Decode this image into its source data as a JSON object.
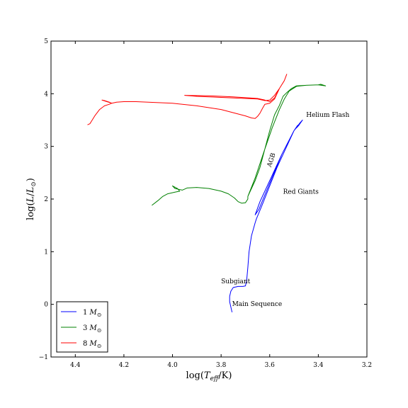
{
  "chart_data": {
    "type": "line",
    "title": "",
    "xlabel": "log(T_eff/K)",
    "ylabel": "log(L/L_⊙)",
    "xlim": [
      4.5,
      3.2
    ],
    "ylim": [
      -1,
      5
    ],
    "x_inverted": true,
    "grid": false,
    "legend_position": "lower-left",
    "xticks": [
      4.4,
      4.2,
      4.0,
      3.8,
      3.6,
      3.4,
      3.2
    ],
    "yticks": [
      -1,
      0,
      1,
      2,
      3,
      4,
      5
    ],
    "xtick_labels": [
      "4.4",
      "4.2",
      "4.0",
      "3.8",
      "3.6",
      "3.4",
      "3.2"
    ],
    "ytick_labels": [
      "−1",
      "0",
      "1",
      "2",
      "3",
      "4",
      "5"
    ],
    "series": [
      {
        "name": "1 M⊙",
        "legend_mass": "1",
        "color": "#0000ff",
        "points": [
          [
            3.755,
            -0.15
          ],
          [
            3.76,
            -0.05
          ],
          [
            3.765,
            0.05
          ],
          [
            3.765,
            0.15
          ],
          [
            3.76,
            0.25
          ],
          [
            3.75,
            0.32
          ],
          [
            3.73,
            0.34
          ],
          [
            3.71,
            0.34
          ],
          [
            3.7,
            0.35
          ],
          [
            3.695,
            0.45
          ],
          [
            3.69,
            0.7
          ],
          [
            3.685,
            1.0
          ],
          [
            3.675,
            1.3
          ],
          [
            3.66,
            1.55
          ],
          [
            3.655,
            1.62
          ],
          [
            3.63,
            1.9
          ],
          [
            3.6,
            2.25
          ],
          [
            3.57,
            2.6
          ],
          [
            3.53,
            3.0
          ],
          [
            3.5,
            3.3
          ],
          [
            3.475,
            3.45
          ],
          [
            3.465,
            3.5
          ],
          [
            3.48,
            3.4
          ],
          [
            3.49,
            3.35
          ],
          [
            3.485,
            3.4
          ],
          [
            3.5,
            3.3
          ],
          [
            3.55,
            2.85
          ],
          [
            3.6,
            2.35
          ],
          [
            3.64,
            1.95
          ],
          [
            3.66,
            1.7
          ],
          [
            3.645,
            1.8
          ],
          [
            3.6,
            2.3
          ],
          [
            3.55,
            2.85
          ],
          [
            3.5,
            3.3
          ],
          [
            3.465,
            3.5
          ]
        ]
      },
      {
        "name": "3 M⊙",
        "legend_mass": "3",
        "color": "#008000",
        "points": [
          [
            4.085,
            1.88
          ],
          [
            4.06,
            1.97
          ],
          [
            4.04,
            2.05
          ],
          [
            4.02,
            2.1
          ],
          [
            3.99,
            2.13
          ],
          [
            3.97,
            2.15
          ],
          [
            3.98,
            2.2
          ],
          [
            4.0,
            2.25
          ],
          [
            3.99,
            2.2
          ],
          [
            3.96,
            2.17
          ],
          [
            3.94,
            2.21
          ],
          [
            3.9,
            2.22
          ],
          [
            3.85,
            2.2
          ],
          [
            3.8,
            2.15
          ],
          [
            3.77,
            2.1
          ],
          [
            3.745,
            2.02
          ],
          [
            3.73,
            1.95
          ],
          [
            3.715,
            1.92
          ],
          [
            3.7,
            1.93
          ],
          [
            3.69,
            2.0
          ],
          [
            3.69,
            2.05
          ],
          [
            3.68,
            2.15
          ],
          [
            3.66,
            2.35
          ],
          [
            3.64,
            2.6
          ],
          [
            3.62,
            2.95
          ],
          [
            3.6,
            3.3
          ],
          [
            3.58,
            3.6
          ],
          [
            3.56,
            3.78
          ],
          [
            3.545,
            3.95
          ],
          [
            3.53,
            4.02
          ],
          [
            3.51,
            4.1
          ],
          [
            3.49,
            4.15
          ],
          [
            3.45,
            4.16
          ],
          [
            3.4,
            4.17
          ],
          [
            3.39,
            4.18
          ],
          [
            3.37,
            4.15
          ],
          [
            3.4,
            4.17
          ],
          [
            3.45,
            4.16
          ],
          [
            3.49,
            4.14
          ],
          [
            3.52,
            4.05
          ],
          [
            3.54,
            3.9
          ],
          [
            3.56,
            3.7
          ],
          [
            3.59,
            3.35
          ],
          [
            3.62,
            2.95
          ],
          [
            3.66,
            2.4
          ],
          [
            3.69,
            2.05
          ]
        ]
      },
      {
        "name": "8 M⊙",
        "legend_mass": "8",
        "color": "#ff0000",
        "points": [
          [
            4.35,
            3.41
          ],
          [
            4.34,
            3.43
          ],
          [
            4.32,
            3.58
          ],
          [
            4.3,
            3.7
          ],
          [
            4.28,
            3.77
          ],
          [
            4.26,
            3.8
          ],
          [
            4.25,
            3.82
          ],
          [
            4.26,
            3.84
          ],
          [
            4.28,
            3.87
          ],
          [
            4.29,
            3.88
          ],
          [
            4.27,
            3.85
          ],
          [
            4.25,
            3.82
          ],
          [
            4.23,
            3.84
          ],
          [
            4.2,
            3.85
          ],
          [
            4.15,
            3.85
          ],
          [
            4.1,
            3.84
          ],
          [
            4.0,
            3.82
          ],
          [
            3.9,
            3.77
          ],
          [
            3.8,
            3.7
          ],
          [
            3.75,
            3.64
          ],
          [
            3.7,
            3.58
          ],
          [
            3.675,
            3.54
          ],
          [
            3.66,
            3.53
          ],
          [
            3.65,
            3.57
          ],
          [
            3.64,
            3.63
          ],
          [
            3.63,
            3.72
          ],
          [
            3.62,
            3.8
          ],
          [
            3.6,
            3.82
          ],
          [
            3.58,
            3.9
          ],
          [
            3.56,
            4.1
          ],
          [
            3.54,
            4.25
          ],
          [
            3.53,
            4.37
          ],
          [
            3.54,
            4.25
          ],
          [
            3.56,
            4.1
          ],
          [
            3.58,
            3.97
          ],
          [
            3.6,
            3.88
          ],
          [
            3.62,
            3.87
          ],
          [
            3.65,
            3.9
          ],
          [
            3.7,
            3.91
          ],
          [
            3.8,
            3.93
          ],
          [
            3.9,
            3.95
          ],
          [
            3.95,
            3.97
          ],
          [
            3.85,
            3.96
          ],
          [
            3.75,
            3.94
          ],
          [
            3.65,
            3.91
          ],
          [
            3.62,
            3.88
          ],
          [
            3.6,
            3.85
          ],
          [
            3.58,
            3.92
          ],
          [
            3.56,
            4.1
          ]
        ]
      }
    ],
    "annotations": [
      {
        "text": "Helium Flash",
        "x": 3.45,
        "y": 3.56,
        "rotate": 0
      },
      {
        "text": "AGB",
        "x": 3.595,
        "y": 2.6,
        "rotate": -72
      },
      {
        "text": "Red Giants",
        "x": 3.545,
        "y": 2.1,
        "rotate": 0
      },
      {
        "text": "Subgiant",
        "x": 3.8,
        "y": 0.4,
        "rotate": 0
      },
      {
        "text": "Main Sequence",
        "x": 3.755,
        "y": -0.03,
        "rotate": 0
      }
    ]
  }
}
